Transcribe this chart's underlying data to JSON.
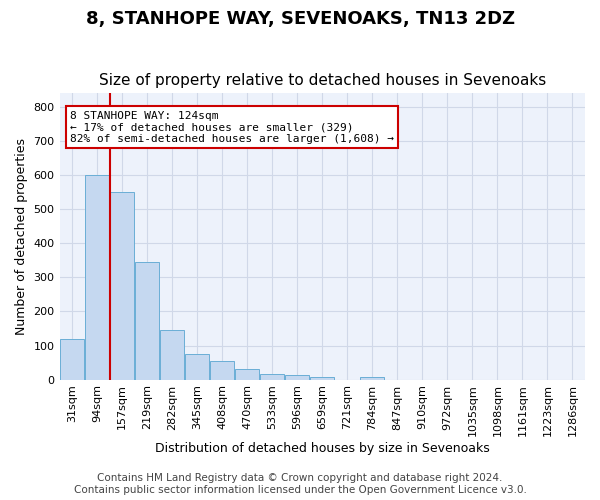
{
  "title": "8, STANHOPE WAY, SEVENOAKS, TN13 2DZ",
  "subtitle": "Size of property relative to detached houses in Sevenoaks",
  "xlabel": "Distribution of detached houses by size in Sevenoaks",
  "ylabel": "Number of detached properties",
  "footer_line1": "Contains HM Land Registry data © Crown copyright and database right 2024.",
  "footer_line2": "Contains public sector information licensed under the Open Government Licence v3.0.",
  "bins": [
    "31sqm",
    "94sqm",
    "157sqm",
    "219sqm",
    "282sqm",
    "345sqm",
    "408sqm",
    "470sqm",
    "533sqm",
    "596sqm",
    "659sqm",
    "721sqm",
    "784sqm",
    "847sqm",
    "910sqm",
    "972sqm",
    "1035sqm",
    "1098sqm",
    "1161sqm",
    "1223sqm",
    "1286sqm"
  ],
  "values": [
    120,
    600,
    550,
    345,
    145,
    75,
    55,
    32,
    15,
    12,
    8,
    0,
    7,
    0,
    0,
    0,
    0,
    0,
    0,
    0,
    0
  ],
  "bar_color": "#c5d8f0",
  "bar_edge_color": "#6aaed6",
  "vline_x": 1.5,
  "annotation_text_line1": "8 STANHOPE WAY: 124sqm",
  "annotation_text_line2": "← 17% of detached houses are smaller (329)",
  "annotation_text_line3": "82% of semi-detached houses are larger (1,608) →",
  "annotation_box_color": "#ffffff",
  "annotation_box_edge": "#cc0000",
  "vline_color": "#cc0000",
  "ylim": [
    0,
    840
  ],
  "yticks": [
    0,
    100,
    200,
    300,
    400,
    500,
    600,
    700,
    800
  ],
  "grid_color": "#d0d8e8",
  "bg_color": "#edf2fb",
  "title_fontsize": 13,
  "subtitle_fontsize": 11,
  "axis_label_fontsize": 9,
  "tick_fontsize": 8,
  "footer_fontsize": 7.5
}
